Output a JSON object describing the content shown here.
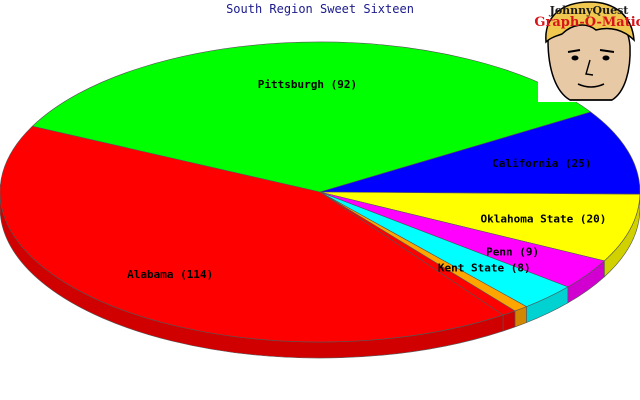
{
  "chart_data": {
    "type": "pie",
    "title": "South Region Sweet Sixteen",
    "slices": [
      {
        "label": "Pittsburgh (92)",
        "name": "Pittsburgh",
        "value": 92,
        "color": "#00ff00"
      },
      {
        "label": "California (25)",
        "name": "California",
        "value": 25,
        "color": "#0000ff"
      },
      {
        "label": "Oklahoma State (20)",
        "name": "Oklahoma State",
        "value": 20,
        "color": "#ffff00"
      },
      {
        "label": "Penn (9)",
        "name": "Penn",
        "value": 9,
        "color": "#ff00ff"
      },
      {
        "label": "Kent State (8)",
        "name": "Kent State",
        "value": 8,
        "color": "#00ffff"
      },
      {
        "label": "",
        "name": "",
        "value": 2,
        "color": "#ffa500"
      },
      {
        "label": "",
        "name": "",
        "value": 2,
        "color": "#ff0000"
      },
      {
        "label": "Alabama (114)",
        "name": "Alabama",
        "value": 114,
        "color": "#ff0000"
      }
    ],
    "style": "3d-tilted",
    "legend": "none"
  },
  "logo": {
    "line1": "JohnnyQuest",
    "line2": "Graph-O-Matic"
  }
}
